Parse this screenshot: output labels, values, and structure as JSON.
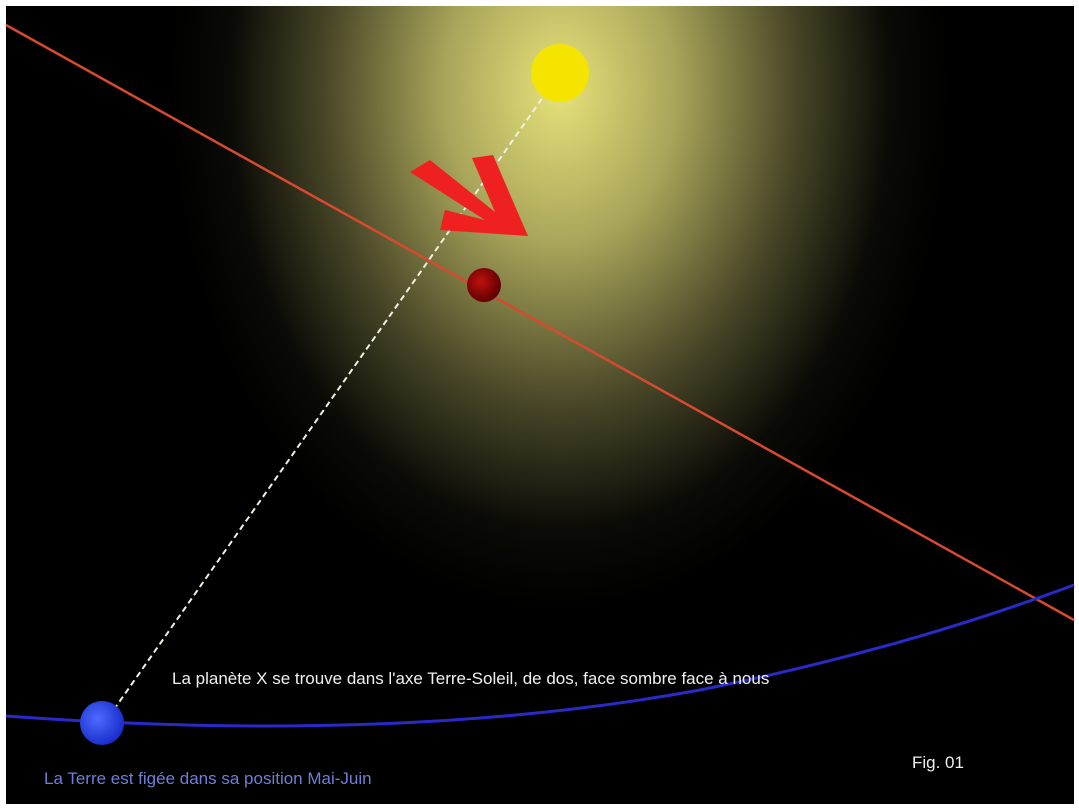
{
  "caption": "La planète X se trouve dans l'axe Terre-Soleil, de dos, face sombre face à nous",
  "earth_note": "La Terre est figée dans sa position Mai-Juin",
  "figure_label": "Fig. 01"
}
